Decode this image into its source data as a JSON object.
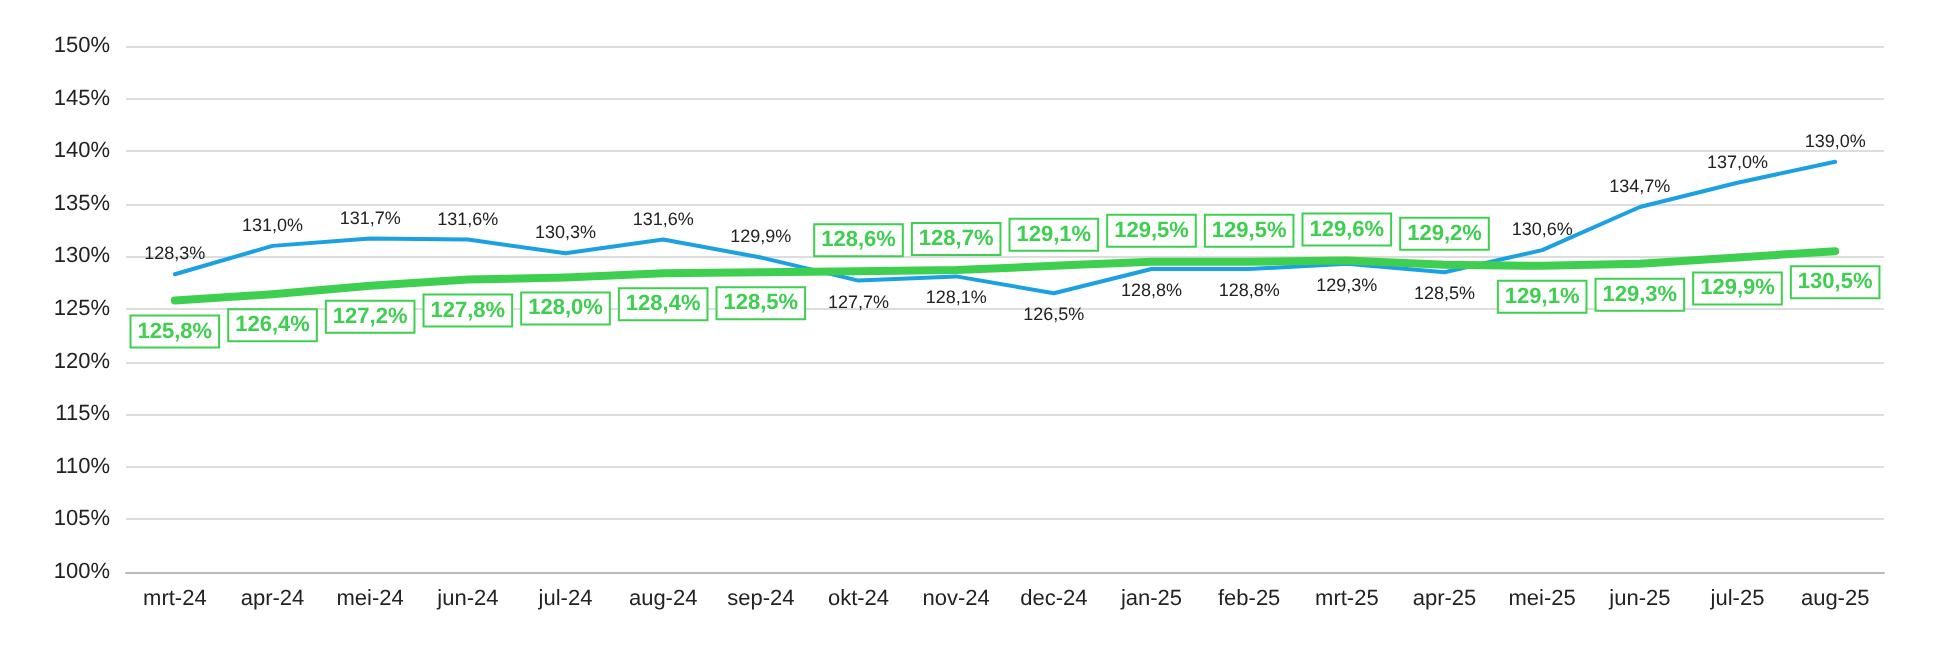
{
  "chart_data": {
    "type": "line",
    "categories": [
      "mrt-24",
      "apr-24",
      "mei-24",
      "jun-24",
      "jul-24",
      "aug-24",
      "sep-24",
      "okt-24",
      "nov-24",
      "dec-24",
      "jan-25",
      "feb-25",
      "mrt-25",
      "apr-25",
      "mei-25",
      "jun-25",
      "jul-25",
      "aug-25"
    ],
    "series": [
      {
        "color": "#1ba1e2",
        "values": [
          128.3,
          131.0,
          131.7,
          131.6,
          130.3,
          131.6,
          129.9,
          127.7,
          128.1,
          126.5,
          128.8,
          128.8,
          129.3,
          128.5,
          130.6,
          134.7,
          137.0,
          139.0
        ],
        "value_labels": [
          "128,3%",
          "131,0%",
          "131,7%",
          "131,6%",
          "130,3%",
          "131,6%",
          "129,9%",
          "127,7%",
          "128,1%",
          "126,5%",
          "128,8%",
          "128,8%",
          "129,3%",
          "128,5%",
          "130,6%",
          "134,7%",
          "137,0%",
          "139,0%"
        ]
      },
      {
        "color": "#3ecf50",
        "values": [
          125.8,
          126.4,
          127.2,
          127.8,
          128.0,
          128.4,
          128.5,
          128.6,
          128.7,
          129.1,
          129.5,
          129.5,
          129.6,
          129.2,
          129.1,
          129.3,
          129.9,
          130.5
        ],
        "value_labels": [
          "125,8%",
          "126,4%",
          "127,2%",
          "127,8%",
          "128,0%",
          "128,4%",
          "128,5%",
          "128,6%",
          "128,7%",
          "129,1%",
          "129,5%",
          "129,5%",
          "129,6%",
          "129,2%",
          "129,1%",
          "129,3%",
          "129,9%",
          "130,5%"
        ]
      }
    ],
    "ylim": [
      100,
      150
    ],
    "yticks": [
      {
        "value": 100,
        "label": "100%"
      },
      {
        "value": 105,
        "label": "105%"
      },
      {
        "value": 110,
        "label": "110%"
      },
      {
        "value": 115,
        "label": "115%"
      },
      {
        "value": 120,
        "label": "120%"
      },
      {
        "value": 125,
        "label": "125%"
      },
      {
        "value": 130,
        "label": "130%"
      },
      {
        "value": 135,
        "label": "135%"
      },
      {
        "value": 140,
        "label": "140%"
      },
      {
        "value": 145,
        "label": "145%"
      },
      {
        "value": 150,
        "label": "150%"
      }
    ],
    "grid": "y",
    "marker": "none",
    "line_style": "solid"
  }
}
